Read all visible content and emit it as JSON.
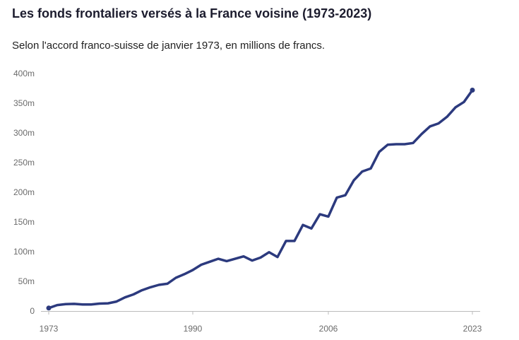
{
  "title": "Les fonds frontaliers versés à la France voisine (1973-2023)",
  "subtitle": "Selon l'accord franco-suisse de janvier 1973, en millions de francs.",
  "colors": {
    "line": "#2c3a7e",
    "axis": "#bbbbbb",
    "tick_text": "#6b6b6b"
  },
  "chart_data": {
    "type": "line",
    "title": "Les fonds frontaliers versés à la France voisine (1973-2023)",
    "subtitle": "Selon l'accord franco-suisse de janvier 1973, en millions de francs.",
    "xlabel": "",
    "ylabel": "",
    "xlim": [
      1973,
      2023
    ],
    "ylim": [
      0,
      400
    ],
    "x_ticks": [
      {
        "value": 1973,
        "label": "1973"
      },
      {
        "value": 1990,
        "label": "1990"
      },
      {
        "value": 2006,
        "label": "2006"
      },
      {
        "value": 2023,
        "label": "2023"
      }
    ],
    "y_ticks": [
      {
        "value": 0,
        "label": "0"
      },
      {
        "value": 50,
        "label": "50m"
      },
      {
        "value": 100,
        "label": "100m"
      },
      {
        "value": 150,
        "label": "150m"
      },
      {
        "value": 200,
        "label": "200m"
      },
      {
        "value": 250,
        "label": "250m"
      },
      {
        "value": 300,
        "label": "300m"
      },
      {
        "value": 350,
        "label": "350m"
      },
      {
        "value": 400,
        "label": "400m"
      }
    ],
    "grid": false,
    "series": [
      {
        "x": [
          1973,
          1974,
          1975,
          1976,
          1977,
          1978,
          1979,
          1980,
          1981,
          1982,
          1983,
          1984,
          1985,
          1986,
          1987,
          1988,
          1989,
          1990,
          1991,
          1992,
          1993,
          1994,
          1995,
          1996,
          1997,
          1998,
          1999,
          2000,
          2001,
          2002,
          2003,
          2004,
          2005,
          2006,
          2007,
          2008,
          2009,
          2010,
          2011,
          2012,
          2013,
          2014,
          2015,
          2016,
          2017,
          2018,
          2019,
          2020,
          2021,
          2022,
          2023
        ],
        "values": [
          5,
          10,
          11.5,
          12,
          11,
          11,
          12.5,
          13,
          16,
          23,
          28,
          35,
          40,
          44,
          46,
          56,
          62,
          69,
          78,
          83,
          88,
          84,
          88,
          92,
          85,
          90,
          99,
          91,
          118,
          118,
          145,
          139,
          163,
          159,
          191,
          195,
          220,
          235,
          240,
          268,
          280,
          281,
          281,
          283,
          298,
          311,
          316,
          327,
          343,
          352,
          372
        ]
      }
    ]
  }
}
